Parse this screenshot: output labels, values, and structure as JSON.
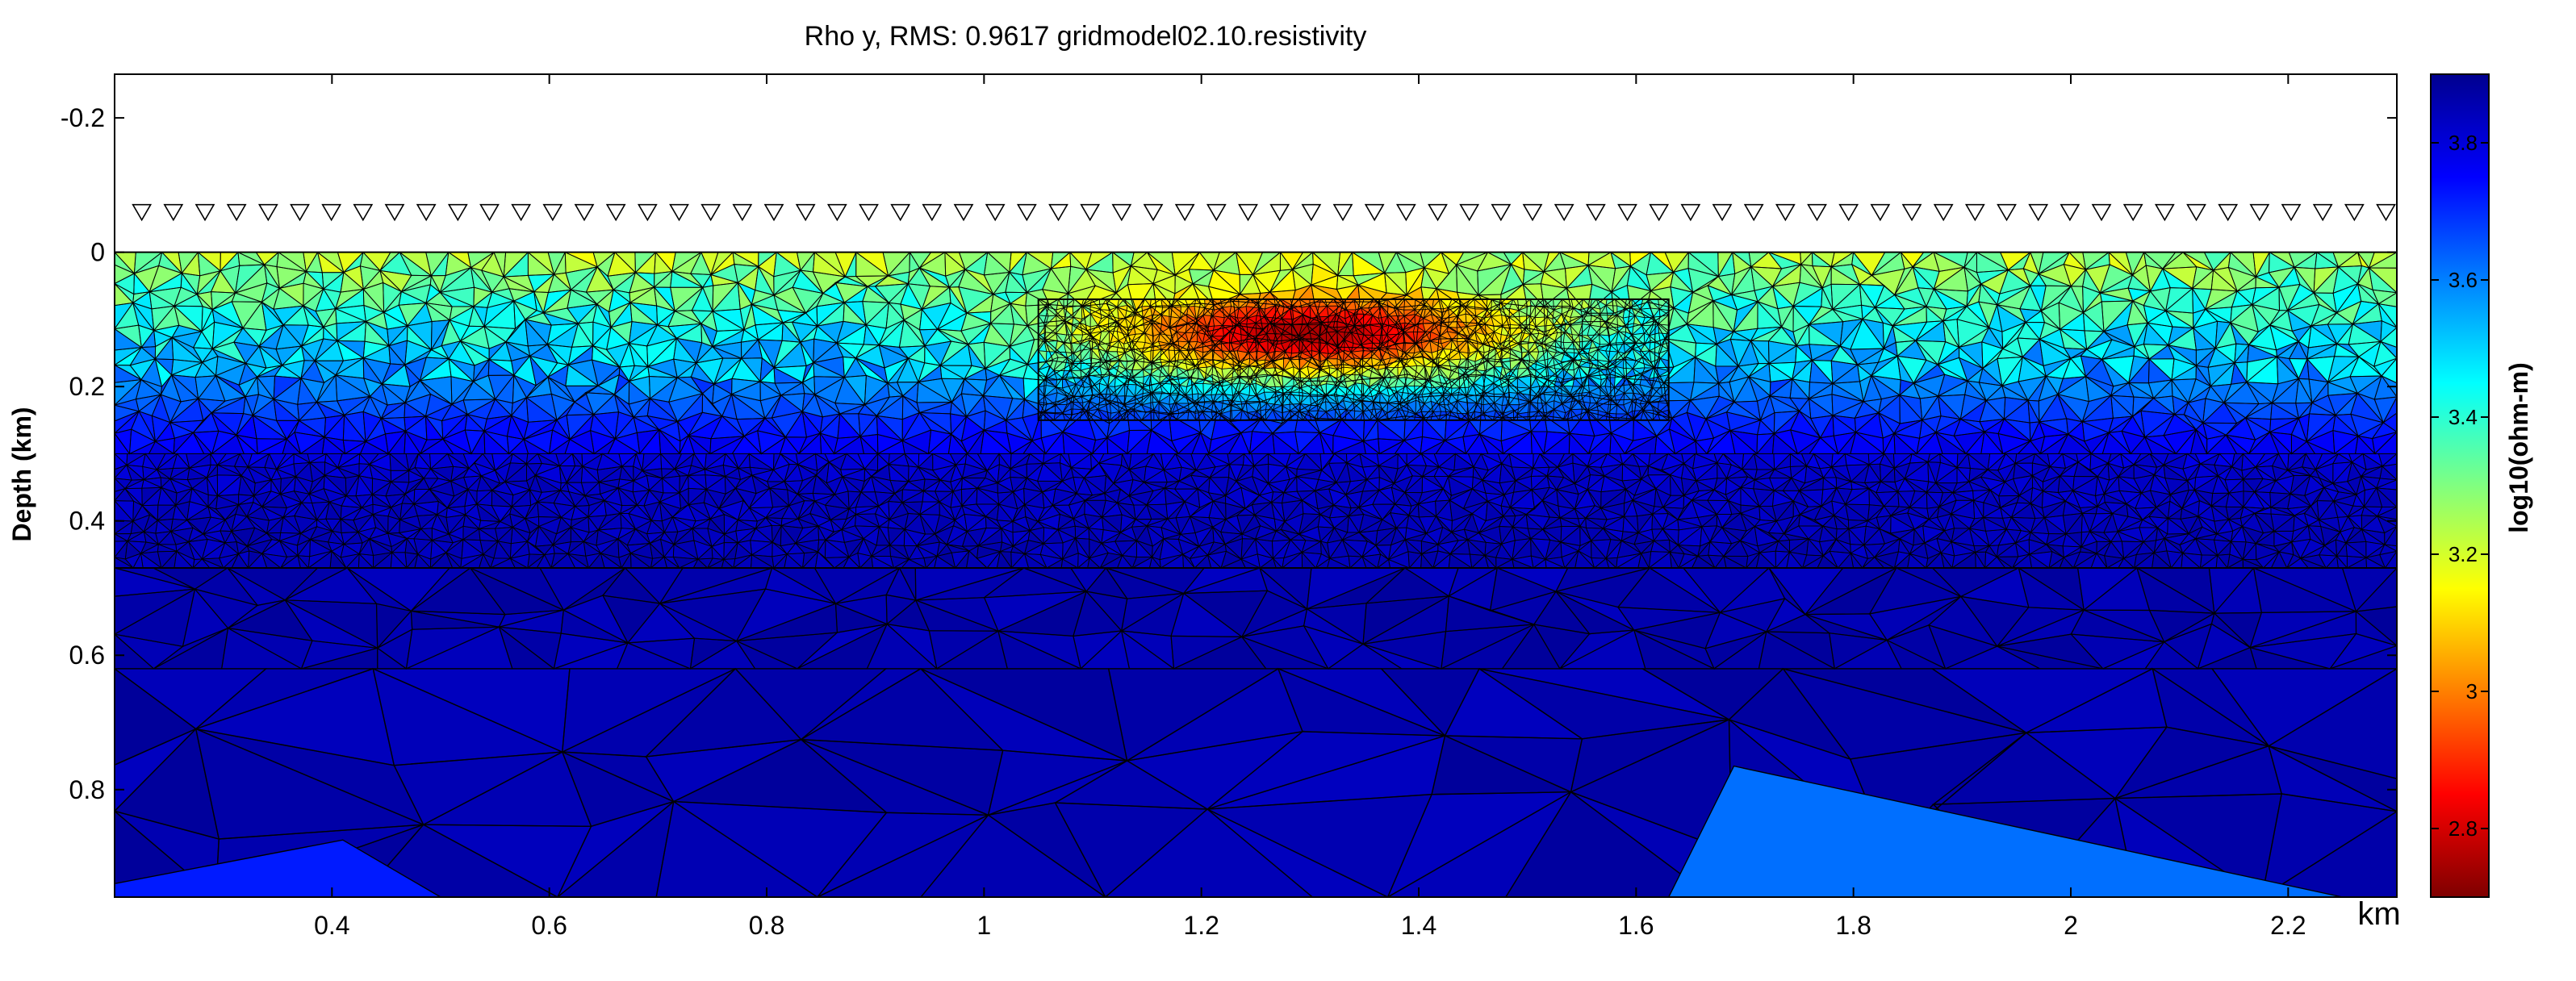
{
  "chart_data": {
    "type": "heatmap",
    "title": "Rho y, RMS: 0.9617  gridmodel02.10.resistivity",
    "xlabel": "",
    "xunit_label": "km",
    "ylabel": "Depth (km)",
    "xlim": [
      0.2,
      2.3
    ],
    "ylim": [
      -0.265,
      0.96
    ],
    "y_inverted": true,
    "xticks": [
      0.4,
      0.6,
      0.8,
      1,
      1.2,
      1.4,
      1.6,
      1.8,
      2,
      2.2
    ],
    "xtick_labels": [
      "0.4",
      "0.6",
      "0.8",
      "1",
      "1.2",
      "1.4",
      "1.6",
      "1.8",
      "2",
      "2.2"
    ],
    "yticks": [
      -0.2,
      0,
      0.2,
      0.4,
      0.6,
      0.8
    ],
    "ytick_labels": [
      "-0.2",
      "0",
      "0.2",
      "0.4",
      "0.6",
      "0.8"
    ],
    "colorbar": {
      "label": "log10(ohm-m)",
      "range": [
        2.7,
        3.9
      ],
      "ticks": [
        2.8,
        3,
        3.2,
        3.4,
        3.6,
        3.8
      ],
      "tick_labels": [
        "2.8",
        "3",
        "3.2",
        "3.4",
        "3.6",
        "3.8"
      ],
      "colormap": "jet",
      "colors": [
        "#7f0000",
        "#ff0000",
        "#ff8000",
        "#ffff00",
        "#80ff80",
        "#00ffff",
        "#0080ff",
        "#0000ff",
        "#00008f"
      ]
    },
    "stations": {
      "symbol": "triangle-down",
      "depth": -0.06,
      "count": 72,
      "x_start": 0.225,
      "x_end": 2.29
    },
    "model": {
      "surface_depth": 0,
      "bottom_depth": 0.96,
      "background_layers": [
        {
          "depth": 0.0,
          "log10_resistivity": 3.25
        },
        {
          "depth": 0.08,
          "log10_resistivity": 3.4
        },
        {
          "depth": 0.18,
          "log10_resistivity": 3.55
        },
        {
          "depth": 0.25,
          "log10_resistivity": 3.7
        },
        {
          "depth": 0.32,
          "log10_resistivity": 3.82
        },
        {
          "depth": 0.5,
          "log10_resistivity": 3.86
        },
        {
          "depth": 0.96,
          "log10_resistivity": 3.86
        }
      ],
      "conductor": {
        "x_center": 1.3,
        "depth_center": 0.12,
        "x_halfwidth": 0.25,
        "depth_halfwidth": 0.085,
        "log10_resistivity": 2.75
      },
      "refined_box": {
        "x": [
          1.05,
          1.63
        ],
        "depth": [
          0.07,
          0.25
        ]
      },
      "layer_line_depth": 0.47,
      "deep_blocks": [
        {
          "log10_resistivity": 3.62,
          "polygon": [
            [
              1.69,
              0.765
            ],
            [
              2.25,
              0.96
            ],
            [
              1.63,
              0.96
            ]
          ]
        },
        {
          "log10_resistivity": 3.72,
          "polygon": [
            [
              0.2,
              0.94
            ],
            [
              0.41,
              0.875
            ],
            [
              0.5,
              0.96
            ],
            [
              0.2,
              0.96
            ]
          ]
        }
      ]
    }
  }
}
